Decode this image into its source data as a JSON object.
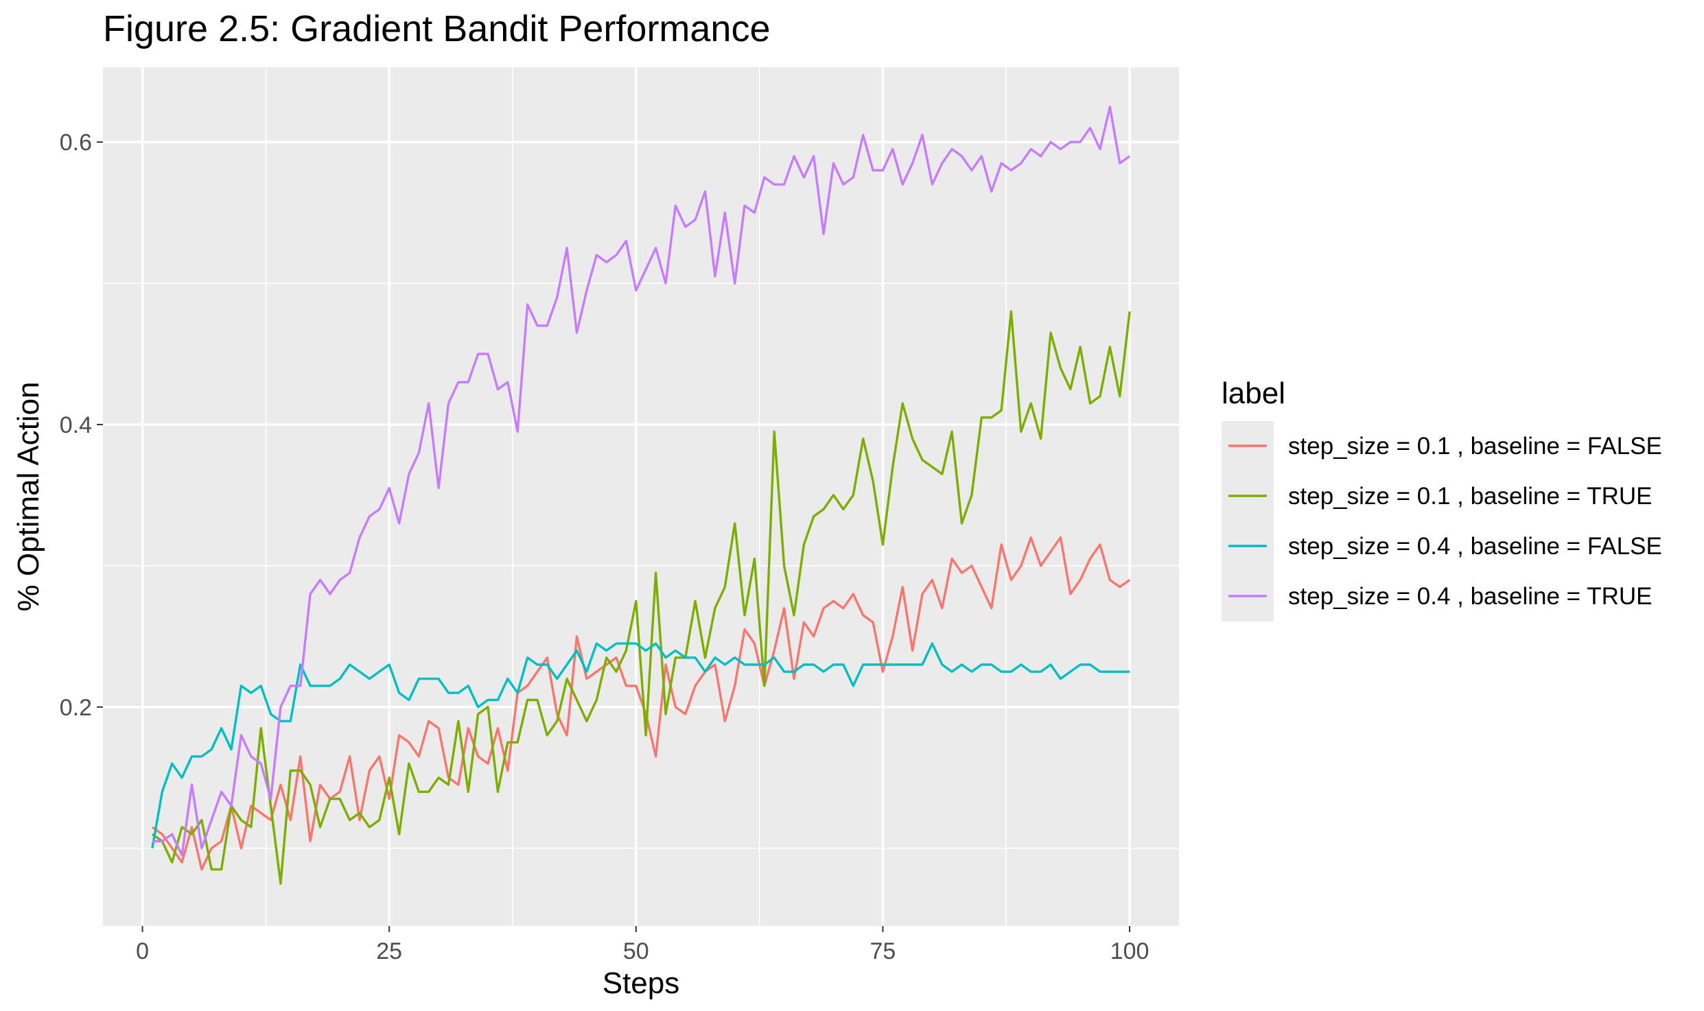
{
  "chart_data": {
    "type": "line",
    "title": "Figure 2.5: Gradient Bandit Performance",
    "xlabel": "Steps",
    "ylabel": "% Optimal Action",
    "xlim": [
      -4,
      105
    ],
    "ylim": [
      0.045,
      0.653
    ],
    "x_ticks": [
      0,
      25,
      50,
      75,
      100
    ],
    "x_tick_labels": [
      "0",
      "25",
      "50",
      "75",
      "100"
    ],
    "x_minor_ticks": [
      12.5,
      37.5,
      62.5,
      87.5
    ],
    "y_ticks": [
      0.2,
      0.4,
      0.6
    ],
    "y_tick_labels": [
      "0.2",
      "0.4",
      "0.6"
    ],
    "y_minor_ticks": [
      0.1,
      0.3,
      0.5
    ],
    "grid": true,
    "legend": {
      "title": "label",
      "position": "right"
    },
    "x": [
      1,
      2,
      3,
      4,
      5,
      6,
      7,
      8,
      9,
      10,
      11,
      12,
      13,
      14,
      15,
      16,
      17,
      18,
      19,
      20,
      21,
      22,
      23,
      24,
      25,
      26,
      27,
      28,
      29,
      30,
      31,
      32,
      33,
      34,
      35,
      36,
      37,
      38,
      39,
      40,
      41,
      42,
      43,
      44,
      45,
      46,
      47,
      48,
      49,
      50,
      51,
      52,
      53,
      54,
      55,
      56,
      57,
      58,
      59,
      60,
      61,
      62,
      63,
      64,
      65,
      66,
      67,
      68,
      69,
      70,
      71,
      72,
      73,
      74,
      75,
      76,
      77,
      78,
      79,
      80,
      81,
      82,
      83,
      84,
      85,
      86,
      87,
      88,
      89,
      90,
      91,
      92,
      93,
      94,
      95,
      96,
      97,
      98,
      99,
      100
    ],
    "series": [
      {
        "name": "step_size = 0.1 , baseline = FALSE",
        "color": "#F8766D",
        "values": [
          0.115,
          0.11,
          0.1,
          0.09,
          0.115,
          0.085,
          0.1,
          0.105,
          0.13,
          0.1,
          0.13,
          0.125,
          0.12,
          0.145,
          0.12,
          0.165,
          0.105,
          0.145,
          0.135,
          0.14,
          0.165,
          0.12,
          0.155,
          0.165,
          0.135,
          0.18,
          0.175,
          0.165,
          0.19,
          0.185,
          0.15,
          0.145,
          0.185,
          0.165,
          0.16,
          0.185,
          0.155,
          0.21,
          0.215,
          0.225,
          0.235,
          0.195,
          0.18,
          0.25,
          0.22,
          0.225,
          0.23,
          0.235,
          0.215,
          0.215,
          0.195,
          0.165,
          0.23,
          0.2,
          0.195,
          0.215,
          0.225,
          0.23,
          0.19,
          0.215,
          0.255,
          0.245,
          0.215,
          0.24,
          0.27,
          0.22,
          0.26,
          0.25,
          0.27,
          0.275,
          0.27,
          0.28,
          0.265,
          0.26,
          0.225,
          0.25,
          0.285,
          0.24,
          0.28,
          0.29,
          0.27,
          0.305,
          0.295,
          0.3,
          0.285,
          0.27,
          0.315,
          0.29,
          0.3,
          0.32,
          0.3,
          0.31,
          0.32,
          0.28,
          0.29,
          0.305,
          0.315,
          0.29,
          0.285,
          0.29
        ]
      },
      {
        "name": "step_size = 0.1 , baseline = TRUE",
        "color": "#7CAE00",
        "values": [
          0.11,
          0.105,
          0.09,
          0.115,
          0.11,
          0.12,
          0.085,
          0.085,
          0.13,
          0.12,
          0.115,
          0.185,
          0.13,
          0.075,
          0.155,
          0.155,
          0.145,
          0.115,
          0.135,
          0.135,
          0.12,
          0.125,
          0.115,
          0.12,
          0.15,
          0.11,
          0.16,
          0.14,
          0.14,
          0.15,
          0.145,
          0.19,
          0.14,
          0.195,
          0.2,
          0.14,
          0.175,
          0.175,
          0.205,
          0.205,
          0.18,
          0.19,
          0.22,
          0.205,
          0.19,
          0.205,
          0.235,
          0.225,
          0.24,
          0.275,
          0.18,
          0.295,
          0.195,
          0.235,
          0.235,
          0.275,
          0.235,
          0.27,
          0.285,
          0.33,
          0.265,
          0.305,
          0.215,
          0.395,
          0.3,
          0.265,
          0.315,
          0.335,
          0.34,
          0.35,
          0.34,
          0.35,
          0.39,
          0.36,
          0.315,
          0.37,
          0.415,
          0.39,
          0.375,
          0.37,
          0.365,
          0.395,
          0.33,
          0.35,
          0.405,
          0.405,
          0.41,
          0.48,
          0.395,
          0.415,
          0.39,
          0.465,
          0.44,
          0.425,
          0.455,
          0.415,
          0.42,
          0.455,
          0.42,
          0.48
        ]
      },
      {
        "name": "step_size = 0.4 , baseline = FALSE",
        "color": "#00BFC4",
        "values": [
          0.1,
          0.14,
          0.16,
          0.15,
          0.165,
          0.165,
          0.17,
          0.185,
          0.17,
          0.215,
          0.21,
          0.215,
          0.195,
          0.19,
          0.19,
          0.23,
          0.215,
          0.215,
          0.215,
          0.22,
          0.23,
          0.225,
          0.22,
          0.225,
          0.23,
          0.21,
          0.205,
          0.22,
          0.22,
          0.22,
          0.21,
          0.21,
          0.215,
          0.2,
          0.205,
          0.205,
          0.22,
          0.21,
          0.235,
          0.23,
          0.23,
          0.22,
          0.23,
          0.24,
          0.225,
          0.245,
          0.24,
          0.245,
          0.245,
          0.245,
          0.24,
          0.245,
          0.235,
          0.24,
          0.235,
          0.235,
          0.225,
          0.235,
          0.23,
          0.235,
          0.23,
          0.23,
          0.23,
          0.235,
          0.225,
          0.225,
          0.23,
          0.23,
          0.225,
          0.23,
          0.23,
          0.215,
          0.23,
          0.23,
          0.23,
          0.23,
          0.23,
          0.23,
          0.23,
          0.245,
          0.23,
          0.225,
          0.23,
          0.225,
          0.23,
          0.23,
          0.225,
          0.225,
          0.23,
          0.225,
          0.225,
          0.23,
          0.22,
          0.225,
          0.23,
          0.23,
          0.225,
          0.225,
          0.225,
          0.225
        ]
      },
      {
        "name": "step_size = 0.4 , baseline = TRUE",
        "color": "#C77CFF",
        "values": [
          0.105,
          0.105,
          0.11,
          0.095,
          0.145,
          0.1,
          0.12,
          0.14,
          0.13,
          0.18,
          0.165,
          0.16,
          0.135,
          0.2,
          0.215,
          0.215,
          0.28,
          0.29,
          0.28,
          0.29,
          0.295,
          0.32,
          0.335,
          0.34,
          0.355,
          0.33,
          0.365,
          0.38,
          0.415,
          0.355,
          0.415,
          0.43,
          0.43,
          0.45,
          0.45,
          0.425,
          0.43,
          0.395,
          0.485,
          0.47,
          0.47,
          0.49,
          0.525,
          0.465,
          0.495,
          0.52,
          0.515,
          0.52,
          0.53,
          0.495,
          0.51,
          0.525,
          0.5,
          0.555,
          0.54,
          0.545,
          0.565,
          0.505,
          0.55,
          0.5,
          0.555,
          0.55,
          0.575,
          0.57,
          0.57,
          0.59,
          0.575,
          0.59,
          0.535,
          0.585,
          0.57,
          0.575,
          0.605,
          0.58,
          0.58,
          0.595,
          0.57,
          0.585,
          0.605,
          0.57,
          0.585,
          0.595,
          0.59,
          0.58,
          0.59,
          0.565,
          0.585,
          0.58,
          0.585,
          0.595,
          0.59,
          0.6,
          0.595,
          0.6,
          0.6,
          0.61,
          0.595,
          0.625,
          0.585,
          0.59
        ]
      }
    ]
  }
}
